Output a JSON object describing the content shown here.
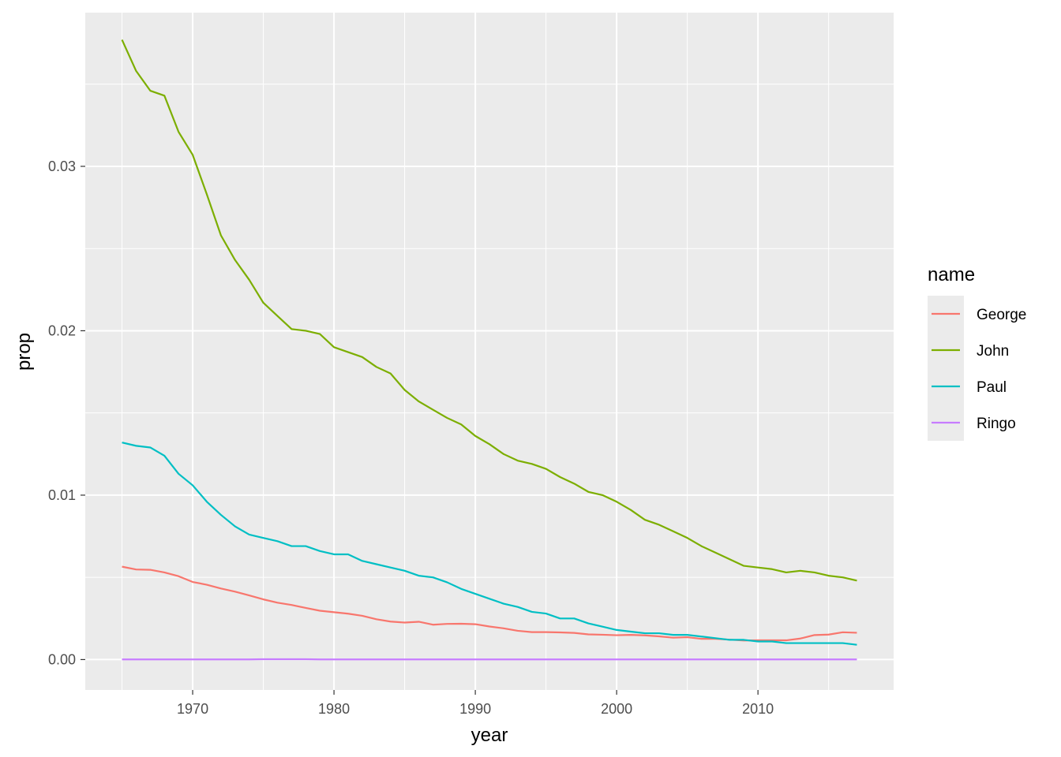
{
  "chart_data": {
    "type": "line",
    "xlabel": "year",
    "ylabel": "prop",
    "xlim": [
      1962.4,
      2019.6
    ],
    "ylim": [
      -0.00185,
      0.03935
    ],
    "x_ticks": [
      1970,
      1980,
      1990,
      2000,
      2010
    ],
    "x_tick_labels": [
      "1970",
      "1980",
      "1990",
      "2000",
      "2010"
    ],
    "y_ticks": [
      0,
      0.01,
      0.02,
      0.03
    ],
    "y_tick_labels": [
      "0.00",
      "0.01",
      "0.02",
      "0.03"
    ],
    "grid": true,
    "legend": {
      "title": "name",
      "position": "right"
    },
    "x": [
      1965,
      1966,
      1967,
      1968,
      1969,
      1970,
      1971,
      1972,
      1973,
      1974,
      1975,
      1976,
      1977,
      1978,
      1979,
      1980,
      1981,
      1982,
      1983,
      1984,
      1985,
      1986,
      1987,
      1988,
      1989,
      1990,
      1991,
      1992,
      1993,
      1994,
      1995,
      1996,
      1997,
      1998,
      1999,
      2000,
      2001,
      2002,
      2003,
      2004,
      2005,
      2006,
      2007,
      2008,
      2009,
      2010,
      2011,
      2012,
      2013,
      2014,
      2015,
      2016,
      2017
    ],
    "series": [
      {
        "name": "George",
        "color": "#F8766D",
        "values": [
          0.00565,
          0.00548,
          0.00546,
          0.0053,
          0.00507,
          0.00472,
          0.00455,
          0.00432,
          0.00413,
          0.0039,
          0.00366,
          0.00346,
          0.00332,
          0.00314,
          0.00297,
          0.00288,
          0.00279,
          0.00266,
          0.00245,
          0.00231,
          0.00225,
          0.0023,
          0.00212,
          0.00217,
          0.00218,
          0.00215,
          0.00201,
          0.0019,
          0.00175,
          0.00167,
          0.00167,
          0.00165,
          0.00162,
          0.00153,
          0.00151,
          0.00148,
          0.0015,
          0.00147,
          0.00141,
          0.00133,
          0.00136,
          0.00126,
          0.00126,
          0.00121,
          0.00116,
          0.00117,
          0.00117,
          0.00117,
          0.00128,
          0.00149,
          0.00152,
          0.00166,
          0.00163
        ]
      },
      {
        "name": "John",
        "color": "#7CAE00",
        "values": [
          0.0377,
          0.0358,
          0.0346,
          0.0343,
          0.0321,
          0.0307,
          0.0283,
          0.0258,
          0.0243,
          0.0231,
          0.0217,
          0.0209,
          0.0201,
          0.02,
          0.0198,
          0.019,
          0.0187,
          0.0184,
          0.0178,
          0.0174,
          0.0164,
          0.0157,
          0.0152,
          0.0147,
          0.0143,
          0.0136,
          0.0131,
          0.0125,
          0.0121,
          0.0119,
          0.0116,
          0.0111,
          0.0107,
          0.0102,
          0.01,
          0.0096,
          0.0091,
          0.0085,
          0.0082,
          0.0078,
          0.0074,
          0.0069,
          0.0065,
          0.0061,
          0.0057,
          0.0056,
          0.0055,
          0.0053,
          0.0054,
          0.0053,
          0.0051,
          0.005,
          0.0048
        ]
      },
      {
        "name": "Paul",
        "color": "#00BFC4",
        "values": [
          0.0132,
          0.013,
          0.0129,
          0.0124,
          0.0113,
          0.0106,
          0.0096,
          0.0088,
          0.0081,
          0.0076,
          0.0074,
          0.0072,
          0.0069,
          0.0069,
          0.0066,
          0.0064,
          0.0064,
          0.006,
          0.0058,
          0.0056,
          0.0054,
          0.0051,
          0.005,
          0.0047,
          0.0043,
          0.004,
          0.0037,
          0.0034,
          0.0032,
          0.0029,
          0.0028,
          0.0025,
          0.0025,
          0.0022,
          0.002,
          0.0018,
          0.0017,
          0.0016,
          0.0016,
          0.0015,
          0.0015,
          0.0014,
          0.0013,
          0.0012,
          0.0012,
          0.0011,
          0.0011,
          0.001,
          0.001,
          0.001,
          0.001,
          0.001,
          0.0009
        ]
      },
      {
        "name": "Ringo",
        "color": "#C77CFF",
        "values": [
          1e-05,
          1e-05,
          1e-05,
          1e-05,
          1e-05,
          1e-05,
          1e-05,
          1e-05,
          1e-05,
          1e-05,
          2e-05,
          2e-05,
          2e-05,
          2e-05,
          1e-05,
          1e-05,
          1e-05,
          1e-05,
          1e-05,
          1e-05,
          1e-05,
          1e-05,
          1e-05,
          1e-05,
          1e-05,
          1e-05,
          1e-05,
          1e-05,
          1e-05,
          1e-05,
          1e-05,
          1e-05,
          1e-05,
          1e-05,
          1e-05,
          1e-05,
          1e-05,
          1e-05,
          1e-05,
          1e-05,
          1e-05,
          1e-05,
          1e-05,
          1e-05,
          1e-05,
          1e-05,
          1e-05,
          1e-05,
          1e-05,
          1e-05,
          1e-05,
          1e-05,
          1e-05
        ]
      }
    ]
  }
}
